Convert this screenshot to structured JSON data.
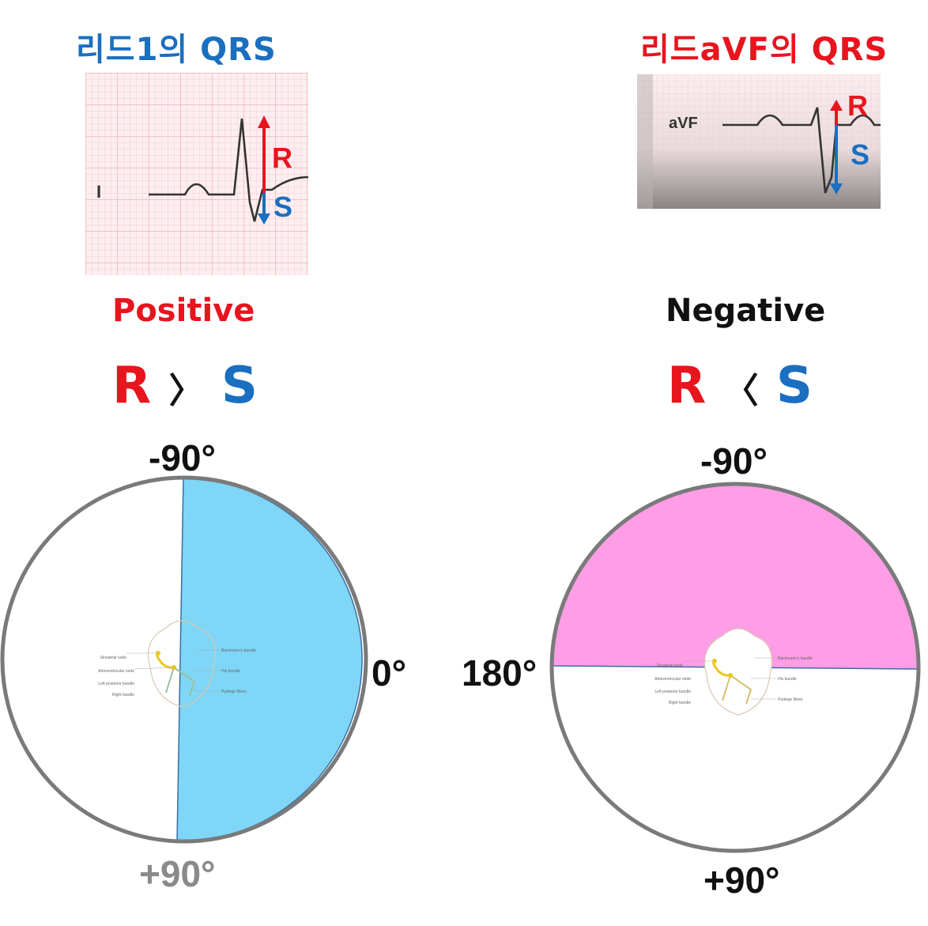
{
  "left": {
    "title": "리드1의 QRS",
    "ecg": {
      "lead": "I",
      "r_label": "R",
      "s_label": "S"
    },
    "verdict": "Positive",
    "comparison": {
      "r": "R",
      "op": "〉",
      "s": "S"
    },
    "axis": {
      "top": "-90°",
      "right": "0°",
      "bottom": "+90°"
    },
    "fill_color": "#7fd6f6"
  },
  "right": {
    "title": "리드aVF의 QRS",
    "ecg": {
      "lead": "aVF",
      "r_label": "R",
      "s_label": "S"
    },
    "verdict": "Negative",
    "comparison": {
      "r": "R",
      "op": "〈",
      "s": "S"
    },
    "axis": {
      "top": "-90°",
      "left": "180°",
      "bottom": "+90°"
    },
    "fill_color": "#ff9de6"
  },
  "heart_labels": [
    "Sinoatrial node",
    "Bachmann's bundle",
    "Atrioventricular node",
    "His bundle",
    "Left posterior bundle",
    "Right bundle",
    "Purkinje fibres"
  ],
  "colors": {
    "red": "#e8141e",
    "blue": "#1a6fc0",
    "circle_border": "#7a7a7a"
  }
}
